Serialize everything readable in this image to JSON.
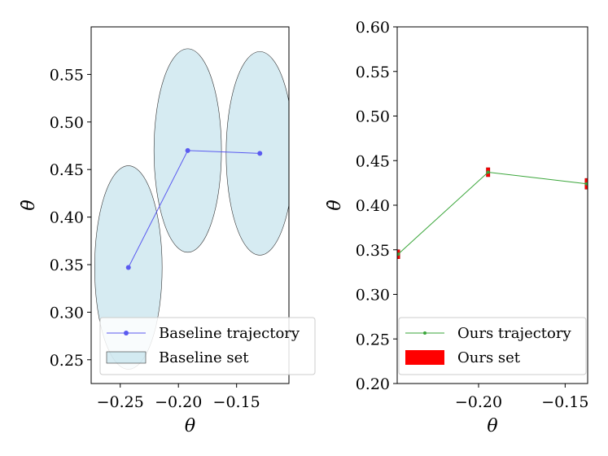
{
  "chart_data": [
    {
      "type": "scatter",
      "title": "",
      "xlabel": "θ",
      "ylabel": "θ̇",
      "xlim": [
        -0.275,
        -0.105
      ],
      "ylim": [
        0.225,
        0.6
      ],
      "xticks": [
        -0.25,
        -0.2,
        -0.15
      ],
      "xtick_labels": [
        "−0.25",
        "−0.20",
        "−0.15"
      ],
      "yticks": [
        0.25,
        0.3,
        0.35,
        0.4,
        0.45,
        0.5,
        0.55
      ],
      "ytick_labels": [
        "0.25",
        "0.30",
        "0.35",
        "0.40",
        "0.45",
        "0.50",
        "0.55"
      ],
      "grid": false,
      "legend_position": "lower-right",
      "trajectory": {
        "name": "Baseline trajectory",
        "color": "#5a5af0",
        "points": [
          {
            "x": -0.243,
            "y": 0.347
          },
          {
            "x": -0.192,
            "y": 0.47
          },
          {
            "x": -0.13,
            "y": 0.467
          }
        ]
      },
      "sets": {
        "name": "Baseline set",
        "color": "#add8e6",
        "ellipses": [
          {
            "cx": -0.243,
            "cy": 0.347,
            "rx": 0.029,
            "ry": 0.107
          },
          {
            "cx": -0.192,
            "cy": 0.47,
            "rx": 0.029,
            "ry": 0.107
          },
          {
            "cx": -0.13,
            "cy": 0.467,
            "rx": 0.029,
            "ry": 0.107
          }
        ]
      }
    },
    {
      "type": "scatter",
      "title": "",
      "xlabel": "θ",
      "ylabel": "θ̇",
      "xlim": [
        -0.247,
        -0.137
      ],
      "ylim": [
        0.2,
        0.6
      ],
      "xticks": [
        -0.2,
        -0.15
      ],
      "xtick_labels": [
        "−0.20",
        "−0.15"
      ],
      "yticks": [
        0.2,
        0.25,
        0.3,
        0.35,
        0.4,
        0.45,
        0.5,
        0.55,
        0.6
      ],
      "ytick_labels": [
        "0.20",
        "0.25",
        "0.30",
        "0.35",
        "0.40",
        "0.45",
        "0.50",
        "0.55",
        "0.60"
      ],
      "grid": false,
      "legend_position": "lower-right",
      "trajectory": {
        "name": "Ours trajectory",
        "color": "#3aa63a",
        "points": [
          {
            "x": -0.2465,
            "y": 0.345
          },
          {
            "x": -0.1945,
            "y": 0.437
          },
          {
            "x": -0.1375,
            "y": 0.424
          }
        ]
      },
      "sets": {
        "name": "Ours set",
        "color": "#ff0000",
        "boxes": [
          {
            "x0": -0.2475,
            "x1": -0.2455,
            "y0": 0.34,
            "y1": 0.35
          },
          {
            "x0": -0.1955,
            "x1": -0.1935,
            "y0": 0.432,
            "y1": 0.442
          },
          {
            "x0": -0.1385,
            "x1": -0.1365,
            "y0": 0.418,
            "y1": 0.43
          }
        ]
      }
    }
  ]
}
